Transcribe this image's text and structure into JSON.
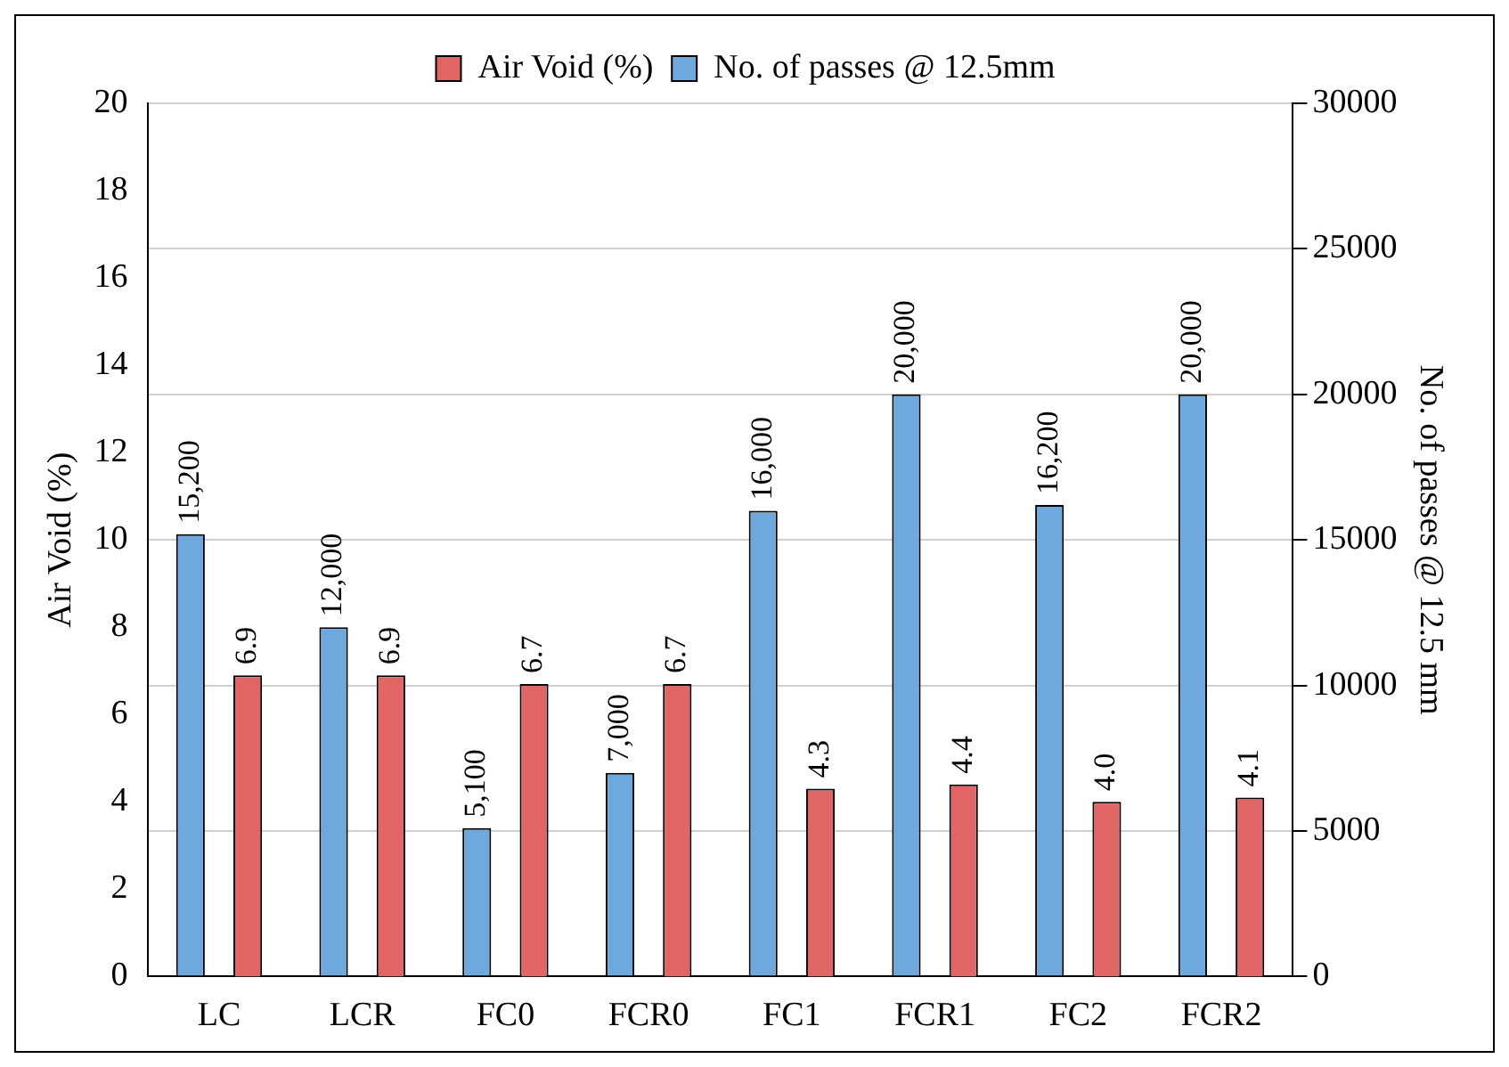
{
  "chart_data": {
    "type": "bar",
    "ylabel": "Air Void (%)",
    "y2label": "No. of passes @ 12.5 mm",
    "categories": [
      "LC",
      "LCR",
      "FC0",
      "FCR0",
      "FC1",
      "FCR1",
      "FC2",
      "FCR2"
    ],
    "series": [
      {
        "name": "No. of passes @ 12.5mm",
        "color": "#6fa8dc",
        "axis": "y2",
        "values": [
          15200,
          12000,
          5100,
          7000,
          16000,
          20000,
          16200,
          20000
        ],
        "value_labels": [
          "15,200",
          "12,000",
          "5,100",
          "7,000",
          "16,000",
          "20,000",
          "16,200",
          "20,000"
        ]
      },
      {
        "name": "Air Void (%)",
        "color": "#e06666",
        "values": [
          6.9,
          6.9,
          6.7,
          6.7,
          4.3,
          4.4,
          4.0,
          4.1
        ],
        "value_labels": [
          "6.9",
          "6.9",
          "6.7",
          "6.7",
          "4.3",
          "4.4",
          "4.0",
          "4.1"
        ]
      }
    ],
    "ylim": [
      0,
      20
    ],
    "yticks": [
      0,
      2,
      4,
      6,
      8,
      10,
      12,
      14,
      16,
      18,
      20
    ],
    "y2lim": [
      0,
      30000
    ],
    "y2ticks": [
      0,
      5000,
      10000,
      15000,
      20000,
      25000,
      30000
    ],
    "grid": "y2",
    "legend": "top"
  }
}
